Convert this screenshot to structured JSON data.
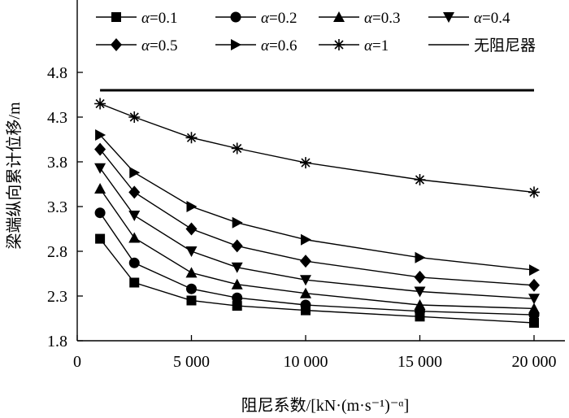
{
  "chart_data": {
    "type": "line",
    "xlabel": "阻尼系数/[kN·(m·s⁻¹)⁻ᵅ]",
    "ylabel": "梁端纵向累计位移/m",
    "xlim": [
      0,
      20000
    ],
    "ylim": [
      1.8,
      5.3
    ],
    "x_ticks": [
      0,
      5000,
      10000,
      15000,
      20000
    ],
    "x_tick_labels": [
      "0",
      "5 000",
      "10 000",
      "15 000",
      "20 000"
    ],
    "y_ticks": [
      1.8,
      2.3,
      2.8,
      3.3,
      3.8,
      4.3,
      4.8
    ],
    "y_tick_labels": [
      "1.8",
      "2.3",
      "2.8",
      "3.3",
      "3.8",
      "4.3",
      "4.8"
    ],
    "grid": false,
    "legend_position": "top",
    "x": [
      1000,
      2500,
      5000,
      7000,
      10000,
      15000,
      20000
    ],
    "series": [
      {
        "name": "α=0.1",
        "marker": "square",
        "values": [
          2.94,
          2.45,
          2.25,
          2.19,
          2.14,
          2.07,
          2.0
        ]
      },
      {
        "name": "α=0.2",
        "marker": "circle",
        "values": [
          3.23,
          2.67,
          2.38,
          2.28,
          2.2,
          2.13,
          2.09
        ]
      },
      {
        "name": "α=0.3",
        "marker": "triangle-up",
        "values": [
          3.5,
          2.95,
          2.56,
          2.43,
          2.33,
          2.2,
          2.16
        ]
      },
      {
        "name": "α=0.4",
        "marker": "triangle-down",
        "values": [
          3.73,
          3.2,
          2.8,
          2.62,
          2.48,
          2.35,
          2.27
        ]
      },
      {
        "name": "α=0.5",
        "marker": "diamond",
        "values": [
          3.94,
          3.46,
          3.05,
          2.86,
          2.69,
          2.51,
          2.42
        ]
      },
      {
        "name": "α=0.6",
        "marker": "triangle-right",
        "values": [
          4.1,
          3.68,
          3.3,
          3.12,
          2.93,
          2.73,
          2.59
        ]
      },
      {
        "name": "α=1",
        "marker": "star",
        "values": [
          4.45,
          4.3,
          4.07,
          3.95,
          3.79,
          3.6,
          3.46
        ]
      },
      {
        "name": "无阻尼器",
        "marker": "none",
        "x": [
          1000,
          20000
        ],
        "values": [
          4.6,
          4.6
        ]
      }
    ]
  }
}
